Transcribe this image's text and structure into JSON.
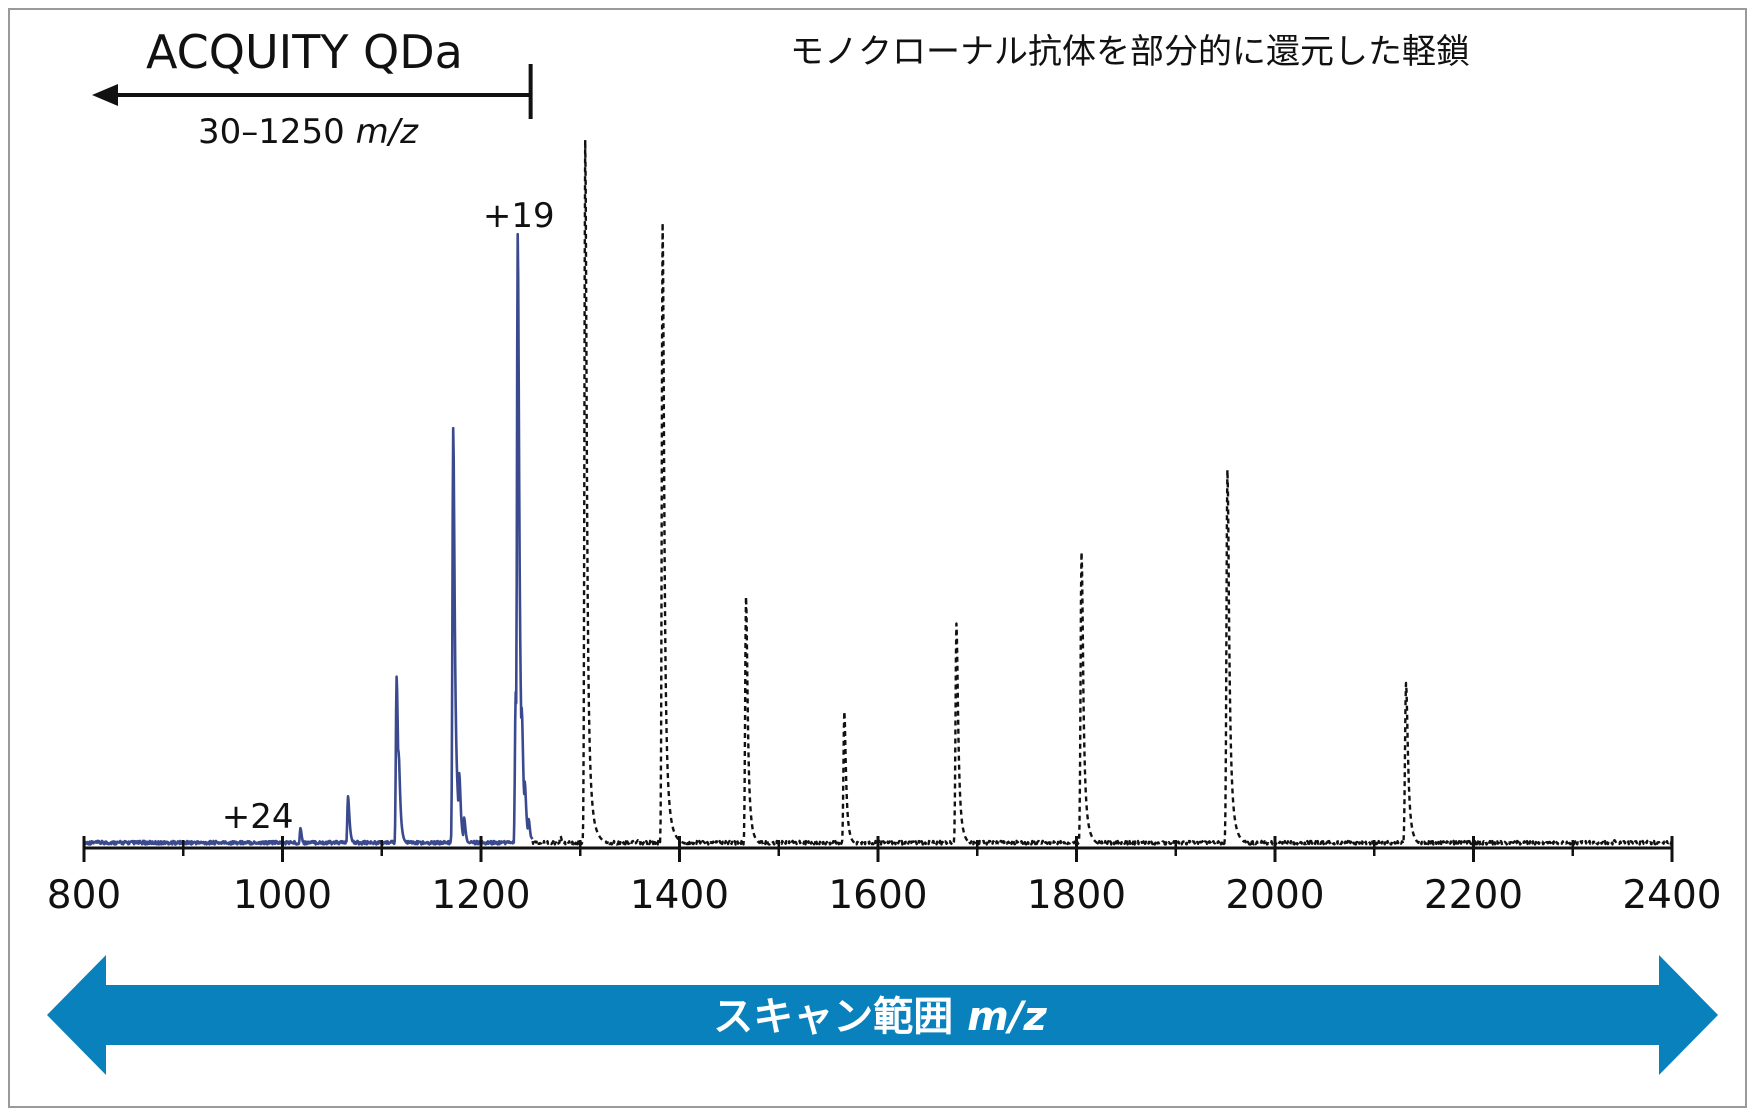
{
  "chart_data": {
    "type": "line",
    "title": "モノクローナル抗体を部分的に還元した軽鎖",
    "xlabel": "スキャン範囲 m/z",
    "xlim": [
      800,
      2400
    ],
    "x_ticks": [
      800,
      1000,
      1200,
      1400,
      1600,
      1800,
      2000,
      2200,
      2400
    ],
    "x_minor_step": 100,
    "ylim": [
      0,
      100
    ],
    "y_axis_visible": false,
    "grid": false,
    "annotations": [
      {
        "text": "+24",
        "x": 975
      },
      {
        "text": "+19",
        "x": 1238
      }
    ],
    "qda_range": {
      "label": "ACQUITY QDa",
      "range_text": "30–1250",
      "unit": "m/z",
      "limit": 1250
    },
    "series": [
      {
        "style": "solid",
        "color": "#3b4a8e",
        "x_range": [
          800,
          1252
        ],
        "baseline": 0.5,
        "peaks": [
          {
            "x": 1018,
            "y": 2.8
          },
          {
            "x": 1066,
            "y": 7.3
          },
          {
            "x": 1115,
            "y": 24.2
          },
          {
            "x": 1117,
            "y": 13.5
          },
          {
            "x": 1172,
            "y": 59.3
          },
          {
            "x": 1178,
            "y": 10.6
          },
          {
            "x": 1183,
            "y": 4.3
          },
          {
            "x": 1235,
            "y": 22.0
          },
          {
            "x": 1237,
            "y": 86.7
          },
          {
            "x": 1241,
            "y": 19.8
          },
          {
            "x": 1244,
            "y": 9.4
          },
          {
            "x": 1248,
            "y": 4.1
          }
        ]
      },
      {
        "style": "dashed",
        "color": "#111111",
        "x_range": [
          1252,
          2400
        ],
        "baseline": 0.5,
        "peaks": [
          {
            "x": 1280,
            "y": 1.7
          },
          {
            "x": 1305,
            "y": 100.0
          },
          {
            "x": 1307,
            "y": 17.5
          },
          {
            "x": 1358,
            "y": 1.1
          },
          {
            "x": 1383,
            "y": 88.3
          },
          {
            "x": 1385,
            "y": 22.3
          },
          {
            "x": 1467,
            "y": 35.5
          },
          {
            "x": 1470,
            "y": 4.8
          },
          {
            "x": 1512,
            "y": 0.9
          },
          {
            "x": 1566,
            "y": 19.3
          },
          {
            "x": 1569,
            "y": 2.9
          },
          {
            "x": 1679,
            "y": 31.7
          },
          {
            "x": 1682,
            "y": 5.1
          },
          {
            "x": 1805,
            "y": 41.8
          },
          {
            "x": 1808,
            "y": 8.0
          },
          {
            "x": 1952,
            "y": 53.4
          },
          {
            "x": 1955,
            "y": 13.1
          },
          {
            "x": 1960,
            "y": 2.9
          },
          {
            "x": 2132,
            "y": 23.3
          },
          {
            "x": 2135,
            "y": 3.2
          },
          {
            "x": 2342,
            "y": 1.1
          }
        ]
      }
    ]
  },
  "colors": {
    "solid_series": "#3b4a8e",
    "scan_arrow": "#0881bd",
    "frame": "#9a9a9a"
  }
}
